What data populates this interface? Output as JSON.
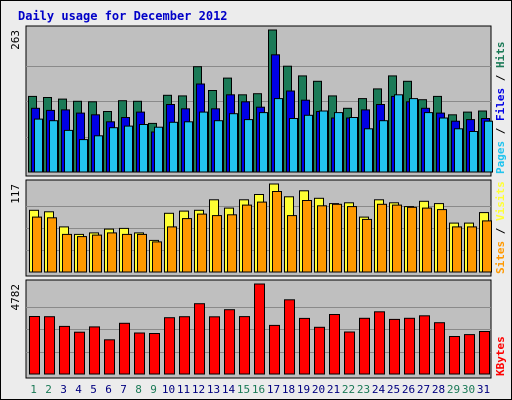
{
  "chart_data": {
    "type": "bar",
    "title": "Daily usage for December 2012",
    "colors": {
      "background": "#bfbfbf",
      "frame_bg": "#ececec",
      "title": "#0000c8",
      "hits": "#1b7a57",
      "files": "#0000e6",
      "pages": "#22c4ee",
      "visits": "#ffff33",
      "sites": "#ff9900",
      "kbytes": "#ff0000",
      "weekday_label": "#000080",
      "weekend_label": "#1b7a57"
    },
    "days": [
      "1",
      "2",
      "3",
      "4",
      "5",
      "6",
      "7",
      "8",
      "9",
      "10",
      "11",
      "12",
      "13",
      "14",
      "15",
      "16",
      "17",
      "18",
      "19",
      "20",
      "21",
      "22",
      "23",
      "24",
      "25",
      "26",
      "27",
      "28",
      "29",
      "30",
      "31"
    ],
    "weekend_days": [
      1,
      2,
      8,
      9,
      15,
      16,
      22,
      23,
      29,
      30
    ],
    "panels": [
      {
        "id": "hits-files-pages",
        "max_label": "263",
        "ymax": 263,
        "side_legend": [
          "Pages",
          "Files",
          "Hits"
        ],
        "series": [
          {
            "name": "Hits",
            "values": [
              140,
              138,
              135,
              131,
              130,
              112,
              132,
              131,
              90,
              142,
              141,
              195,
              151,
              174,
              143,
              145,
              263,
              196,
              178,
              168,
              141,
              118,
              136,
              154,
              178,
              168,
              134,
              140,
              106,
              111,
              113
            ]
          },
          {
            "name": "Files",
            "values": [
              118,
              114,
              115,
              109,
              106,
              93,
              101,
              111,
              74,
              125,
              117,
              163,
              117,
              143,
              130,
              120,
              217,
              150,
              133,
              112,
              100,
              100,
              115,
              125,
              140,
              130,
              118,
              109,
              94,
              97,
              99
            ]
          },
          {
            "name": "Pages",
            "values": [
              98,
              95,
              77,
              60,
              67,
              82,
              85,
              88,
              83,
              92,
              93,
              111,
              95,
              108,
              97,
              110,
              136,
              99,
              105,
              113,
              110,
              101,
              80,
              95,
              143,
              136,
              110,
              100,
              80,
              75,
              94
            ]
          }
        ]
      },
      {
        "id": "visits-sites",
        "max_label": "117",
        "ymax": 117,
        "side_legend": [
          "Sites",
          "Visits"
        ],
        "series": [
          {
            "name": "Visits",
            "values": [
              82,
              80,
              60,
              50,
              52,
              57,
              58,
              52,
              42,
              78,
              81,
              82,
              96,
              85,
              96,
              103,
              117,
              100,
              108,
              98,
              91,
              92,
              73,
              96,
              92,
              87,
              94,
              91,
              65,
              65,
              79
            ]
          },
          {
            "name": "Sites",
            "values": [
              73,
              72,
              50,
              47,
              49,
              52,
              50,
              50,
              40,
              60,
              71,
              77,
              75,
              76,
              89,
              93,
              107,
              75,
              95,
              88,
              90,
              87,
              70,
              90,
              89,
              86,
              85,
              83,
              60,
              60,
              68
            ]
          }
        ]
      },
      {
        "id": "kbytes",
        "max_label": "4782",
        "ymax": 4782,
        "side_legend": [
          "KBytes"
        ],
        "series": [
          {
            "name": "KBytes",
            "values": [
              3055,
              3045,
              2530,
              2220,
              2505,
              1815,
              2695,
              2180,
              2150,
              2990,
              3045,
              3735,
              3040,
              3415,
              3050,
              4782,
              2580,
              3940,
              2955,
              2480,
              3160,
              2230,
              2960,
              3305,
              2900,
              2960,
              3095,
              2725,
              1990,
              2095,
              2260
            ]
          }
        ]
      }
    ]
  }
}
